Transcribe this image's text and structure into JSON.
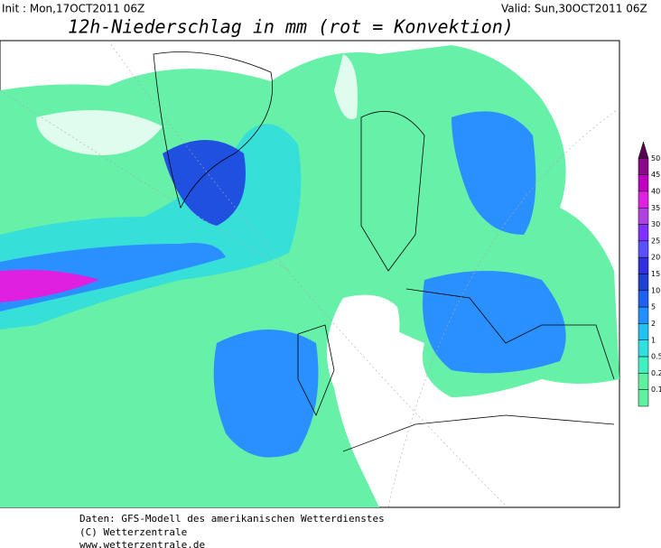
{
  "header": {
    "init": "Init : Mon,17OCT2011 06Z",
    "valid": "Valid: Sun,30OCT2011 06Z",
    "title": "12h-Niederschlag in mm (rot = Konvektion)"
  },
  "legend": {
    "levels": [
      {
        "label": 50,
        "color": "#5a0050"
      },
      {
        "label": 45,
        "color": "#8b0a8b"
      },
      {
        "label": 40,
        "color": "#c000c0"
      },
      {
        "label": 35,
        "color": "#e020e0"
      },
      {
        "label": 30,
        "color": "#b040e0"
      },
      {
        "label": 25,
        "color": "#8030ff"
      },
      {
        "label": 20,
        "color": "#5a50ff"
      },
      {
        "label": 15,
        "color": "#3030e0"
      },
      {
        "label": 10,
        "color": "#2040d0"
      },
      {
        "label": 5,
        "color": "#2060f0"
      },
      {
        "label": 2,
        "color": "#2090ff"
      },
      {
        "label": 1,
        "color": "#20c0f0"
      },
      {
        "label": 0.5,
        "color": "#30e0e0"
      },
      {
        "label": 0.2,
        "color": "#40f0c0"
      },
      {
        "label": 0.1,
        "color": "#60f0a0"
      }
    ]
  },
  "footer": {
    "lines": [
      "Daten: GFS-Modell des amerikanischen Wetterdienstes",
      "(C) Wetterzentrale",
      "www.wetterzentrale.de"
    ]
  }
}
